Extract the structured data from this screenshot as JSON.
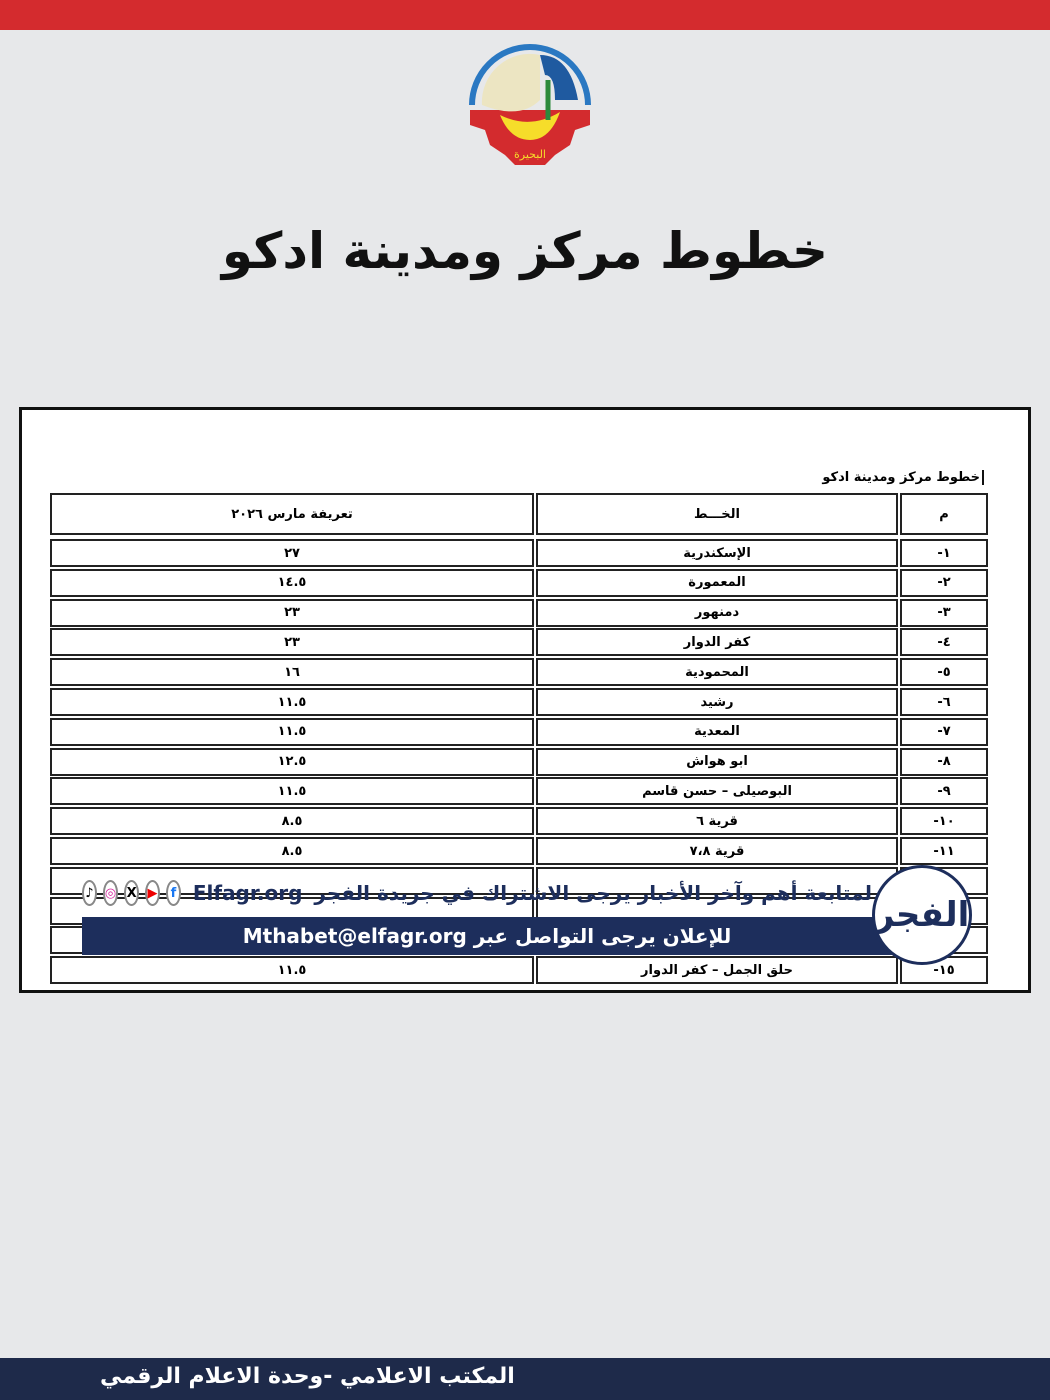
{
  "page_title": "خطوط مركز ومدينة ادكو",
  "logo": {
    "text": "البحيرة"
  },
  "document": {
    "title": "خطوط مركز ومدينة ادكو",
    "headers": {
      "num": "م",
      "line": "الخـــط",
      "fare": "تعريفة مارس ٢٠٢٦"
    },
    "rows": [
      {
        "num": "١-",
        "line": "الإسكندرية",
        "fare": "٢٧"
      },
      {
        "num": "٢-",
        "line": "المعمورة",
        "fare": "١٤.٥"
      },
      {
        "num": "٣-",
        "line": "دمنهور",
        "fare": "٢٣"
      },
      {
        "num": "٤-",
        "line": "كفر الدوار",
        "fare": "٢٣"
      },
      {
        "num": "٥-",
        "line": "المحمودية",
        "fare": "١٦"
      },
      {
        "num": "٦-",
        "line": "رشيد",
        "fare": "١١.٥"
      },
      {
        "num": "٧-",
        "line": "المعدية",
        "fare": "١١.٥"
      },
      {
        "num": "٨-",
        "line": "ابو هواش",
        "fare": "١٢.٥"
      },
      {
        "num": "٩-",
        "line": "البوصيلى – حسن قاسم",
        "fare": "١١.٥"
      },
      {
        "num": "١٠-",
        "line": "قرية ٦",
        "fare": "٨.٥"
      },
      {
        "num": "١١-",
        "line": "قرية ٧،٨",
        "fare": "٨.٥"
      },
      {
        "num": "١٥-",
        "line": "حلق الجمل – كفر الدوار",
        "fare": "١١.٥"
      }
    ]
  },
  "watermark": {
    "follow_text": "لمتابعة أهم وآخر الأخبار يرجى الاشتراك في جريدة الفجر",
    "site": "Elfagr.org",
    "ad_text": "للإعلان يرجى التواصل عبر Mthabet@elfagr.org",
    "brand": "الفجر",
    "social_icons": [
      "tiktok-icon",
      "instagram-icon",
      "x-icon",
      "youtube-icon",
      "facebook-icon"
    ]
  },
  "footer": {
    "text": "المكتب الاعلامي -وحدة الاعلام الرقمي"
  },
  "colors": {
    "top_bar": "#d42b2e",
    "footer": "#1e2a4a",
    "banner": "#1d2e5c"
  }
}
